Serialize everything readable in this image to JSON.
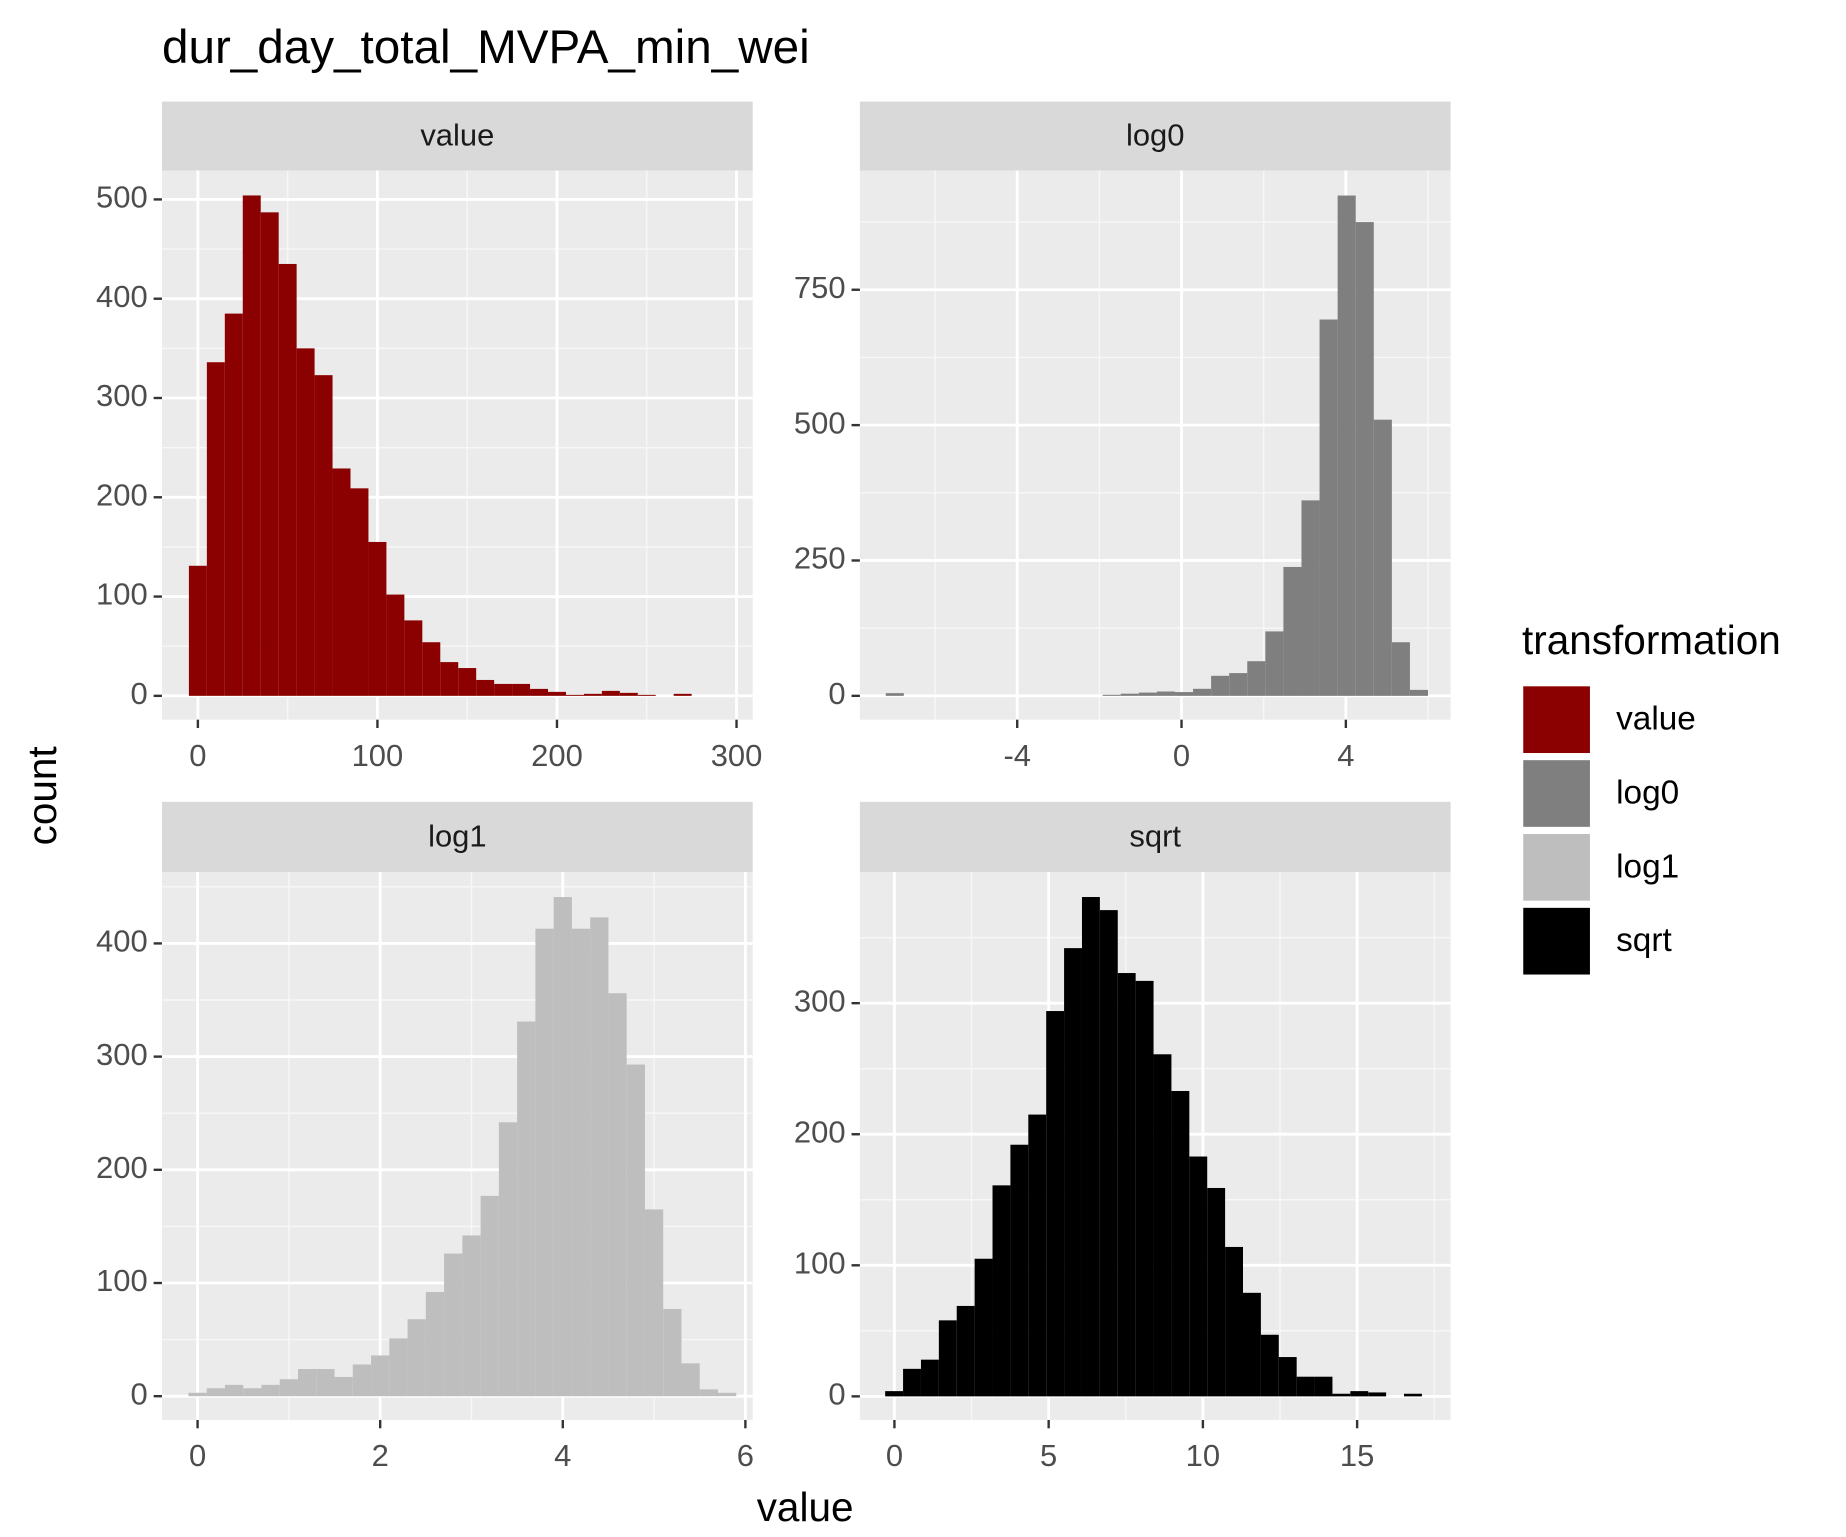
{
  "title": "dur_day_total_MVPA_min_wei",
  "x_label": "value",
  "y_label": "count",
  "legend_title": "transformation",
  "chart_data": [
    {
      "type": "histogram",
      "name": "value",
      "color": "#8b0000",
      "grid": true,
      "bins": [
        -5,
        5,
        15,
        25,
        35,
        45,
        55,
        65,
        75,
        85,
        95,
        105,
        115,
        125,
        135,
        145,
        155,
        165,
        175,
        185,
        195,
        205,
        215,
        225,
        235,
        245,
        255,
        265,
        275,
        285,
        295
      ],
      "values": [
        131,
        336,
        385,
        504,
        487,
        435,
        350,
        323,
        229,
        209,
        155,
        102,
        76,
        54,
        34,
        28,
        16,
        12,
        12,
        7,
        4,
        1,
        2,
        5,
        3,
        1,
        0,
        2,
        0,
        0
      ],
      "xlim": [
        -20,
        309
      ],
      "ylim": [
        -24,
        529
      ],
      "xticks": [
        0,
        100,
        200,
        300
      ],
      "yticks": [
        0,
        100,
        200,
        300,
        400,
        500
      ]
    },
    {
      "type": "histogram",
      "name": "log0",
      "color": "#7f7f7f",
      "grid": true,
      "bins": [
        -7.2,
        -6.76,
        -6.32,
        -5.88,
        -5.44,
        -5.0,
        -4.56,
        -4.12,
        -3.68,
        -3.24,
        -2.8,
        -2.36,
        -1.92,
        -1.48,
        -1.04,
        -0.6,
        -0.16,
        0.28,
        0.72,
        1.16,
        1.6,
        2.04,
        2.48,
        2.92,
        3.36,
        3.8,
        4.24,
        4.68,
        5.12,
        5.56,
        6.0
      ],
      "values": [
        5,
        0,
        0,
        0,
        0,
        0,
        0,
        0,
        0,
        0,
        0,
        0,
        2,
        4,
        6,
        8,
        7,
        13,
        37,
        42,
        64,
        119,
        238,
        361,
        695,
        924,
        875,
        510,
        99,
        11
      ],
      "xlim": [
        -7.83,
        6.55
      ],
      "ylim": [
        -44,
        970
      ],
      "xticks": [
        -4,
        0,
        4
      ],
      "yticks": [
        0,
        250,
        500,
        750
      ]
    },
    {
      "type": "histogram",
      "name": "log1",
      "color": "#bebebe",
      "grid": true,
      "bins": [
        -0.1,
        0.1,
        0.3,
        0.5,
        0.7,
        0.9,
        1.1,
        1.3,
        1.5,
        1.7,
        1.9,
        2.1,
        2.3,
        2.5,
        2.7,
        2.9,
        3.1,
        3.3,
        3.5,
        3.7,
        3.9,
        4.1,
        4.3,
        4.5,
        4.7,
        4.9,
        5.1,
        5.3,
        5.5,
        5.7,
        5.9
      ],
      "values": [
        3,
        7,
        10,
        7,
        10,
        15,
        24,
        24,
        17,
        28,
        36,
        51,
        68,
        92,
        126,
        142,
        177,
        242,
        331,
        413,
        441,
        413,
        423,
        356,
        293,
        165,
        77,
        29,
        6,
        3
      ],
      "xlim": [
        -0.39,
        6.08
      ],
      "ylim": [
        -21,
        463
      ],
      "xticks": [
        0,
        2,
        4,
        6
      ],
      "yticks": [
        0,
        100,
        200,
        300,
        400
      ]
    },
    {
      "type": "histogram",
      "name": "sqrt",
      "color": "#000000",
      "grid": true,
      "bins": [
        -0.3,
        0.28,
        0.86,
        1.44,
        2.02,
        2.6,
        3.18,
        3.76,
        4.34,
        4.92,
        5.5,
        6.08,
        6.66,
        7.24,
        7.82,
        8.4,
        8.98,
        9.56,
        10.14,
        10.72,
        11.3,
        11.88,
        12.46,
        13.04,
        13.62,
        14.2,
        14.78,
        15.36,
        15.94,
        16.52,
        17.1
      ],
      "values": [
        4,
        21,
        28,
        58,
        69,
        105,
        161,
        192,
        215,
        294,
        342,
        381,
        371,
        323,
        317,
        261,
        233,
        183,
        159,
        114,
        79,
        47,
        30,
        15,
        15,
        2,
        4,
        3,
        0,
        2
      ],
      "xlim": [
        -1.12,
        18.03
      ],
      "ylim": [
        -18,
        400
      ],
      "xticks": [
        0,
        5,
        10,
        15
      ],
      "yticks": [
        0,
        100,
        200,
        300
      ]
    }
  ]
}
